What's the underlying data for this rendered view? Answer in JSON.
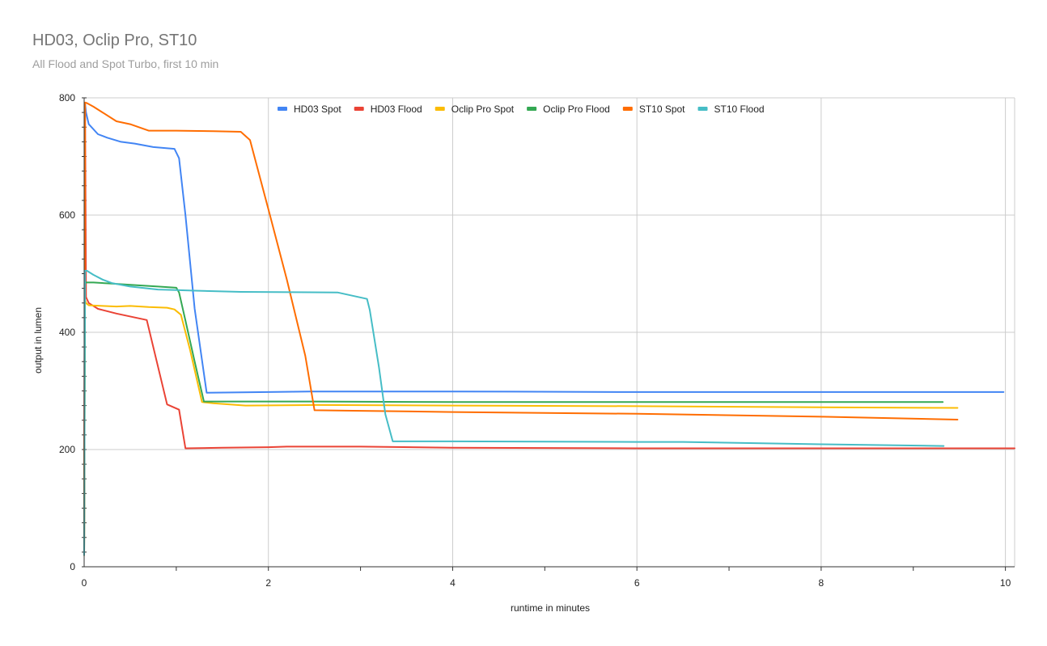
{
  "chart_data": {
    "type": "line",
    "title": "HD03, Oclip Pro, ST10",
    "subtitle": "All Flood and Spot Turbo, first 10 min",
    "xlabel": "runtime in minutes",
    "ylabel": "output in lumen",
    "xlim": [
      0,
      10.1
    ],
    "ylim": [
      0,
      800
    ],
    "x_ticks": [
      0,
      2,
      4,
      6,
      8,
      10
    ],
    "y_ticks": [
      0,
      200,
      400,
      600,
      800
    ],
    "grid": true,
    "legend_position": "top",
    "series": [
      {
        "name": "HD03 Spot",
        "color": "#4285f4",
        "x": [
          0,
          0.01,
          0.02,
          0.05,
          0.15,
          0.25,
          0.4,
          0.55,
          0.75,
          0.98,
          1.03,
          1.1,
          1.2,
          1.33,
          2.0,
          2.5,
          4.0,
          6.0,
          8.0,
          9.98
        ],
        "y": [
          20,
          790,
          775,
          755,
          738,
          732,
          725,
          722,
          716,
          713,
          697,
          600,
          440,
          297,
          298,
          299,
          299,
          298,
          298,
          298
        ]
      },
      {
        "name": "HD03 Flood",
        "color": "#ea4335",
        "x": [
          0,
          0.01,
          0.02,
          0.05,
          0.15,
          0.35,
          0.68,
          0.9,
          1.03,
          1.1,
          1.5,
          2.0,
          2.2,
          3.0,
          4.0,
          6.0,
          8.0,
          10.1
        ],
        "y": [
          20,
          790,
          460,
          450,
          440,
          432,
          421,
          277,
          268,
          202,
          203,
          204,
          205,
          205,
          203,
          202,
          202,
          202
        ]
      },
      {
        "name": "Oclip Pro Spot",
        "color": "#fbbc04",
        "x": [
          0,
          0.01,
          0.02,
          0.05,
          0.2,
          0.35,
          0.5,
          0.7,
          0.9,
          0.98,
          1.05,
          1.15,
          1.28,
          1.4,
          1.75,
          2.5,
          4.0,
          6.0,
          8.0,
          9.48
        ],
        "y": [
          20,
          455,
          450,
          446,
          445,
          444,
          445,
          443,
          442,
          439,
          430,
          370,
          281,
          279,
          275,
          276,
          275,
          274,
          272,
          271
        ]
      },
      {
        "name": "Oclip Pro Flood",
        "color": "#34a853",
        "x": [
          0,
          0.01,
          0.02,
          0.1,
          0.3,
          0.5,
          0.8,
          1.0,
          1.03,
          1.1,
          1.2,
          1.3,
          2.0,
          2.5,
          4.0,
          6.0,
          8.0,
          9.32
        ],
        "y": [
          20,
          485,
          485,
          485,
          483,
          481,
          478,
          476,
          468,
          420,
          350,
          282,
          282,
          282,
          281,
          281,
          281,
          281
        ]
      },
      {
        "name": "ST10 Spot",
        "color": "#ff6d01",
        "x": [
          0,
          0.01,
          0.03,
          0.1,
          0.2,
          0.35,
          0.5,
          0.7,
          1.0,
          1.4,
          1.7,
          1.8,
          2.0,
          2.2,
          2.4,
          2.5,
          3.0,
          4.0,
          6.0,
          8.0,
          9.48
        ],
        "y": [
          20,
          792,
          791,
          785,
          775,
          760,
          755,
          744,
          744,
          743,
          742,
          728,
          610,
          490,
          360,
          267,
          266,
          264,
          261,
          256,
          251
        ]
      },
      {
        "name": "ST10 Flood",
        "color": "#46bdc6",
        "x": [
          0,
          0.01,
          0.03,
          0.1,
          0.2,
          0.3,
          0.5,
          0.8,
          1.0,
          1.2,
          1.7,
          2.75,
          3.07,
          3.1,
          3.2,
          3.27,
          3.35,
          4.0,
          6.0,
          6.5,
          8.0,
          9.33
        ],
        "y": [
          20,
          505,
          505,
          498,
          490,
          484,
          478,
          473,
          472,
          471,
          469,
          468,
          457,
          438,
          340,
          260,
          214,
          214,
          213,
          213,
          209,
          206
        ]
      }
    ]
  }
}
